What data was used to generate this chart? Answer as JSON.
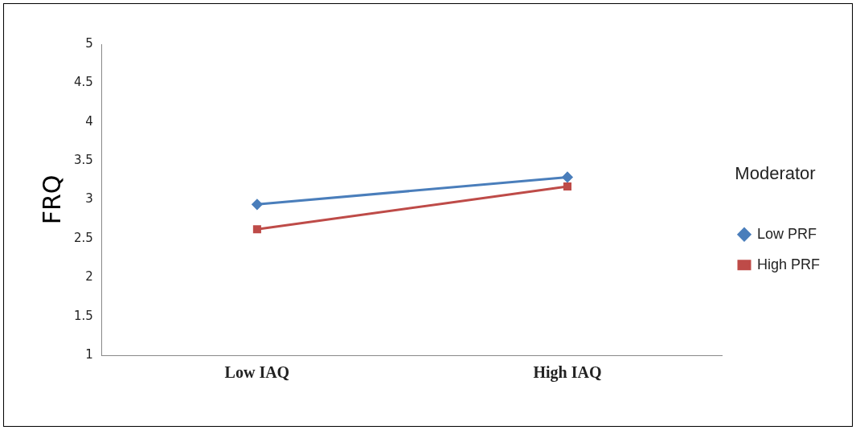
{
  "chart_data": {
    "type": "line",
    "ylabel": "FRQ",
    "legend_title": "Moderator",
    "categories": [
      "Low IAQ",
      "High IAQ"
    ],
    "series": [
      {
        "name": "Low PRF",
        "color": "#4a7ebb",
        "values": [
          2.94,
          3.29
        ],
        "marker": "diamond"
      },
      {
        "name": "High PRF",
        "color": "#be4b48",
        "values": [
          2.62,
          3.17
        ],
        "marker": "square"
      }
    ],
    "ylim": [
      1,
      5
    ],
    "yticks": [
      1,
      1.5,
      2,
      2.5,
      3,
      3.5,
      4,
      4.5,
      5
    ],
    "grid": false,
    "legend": "right",
    "line_style": "solid"
  }
}
